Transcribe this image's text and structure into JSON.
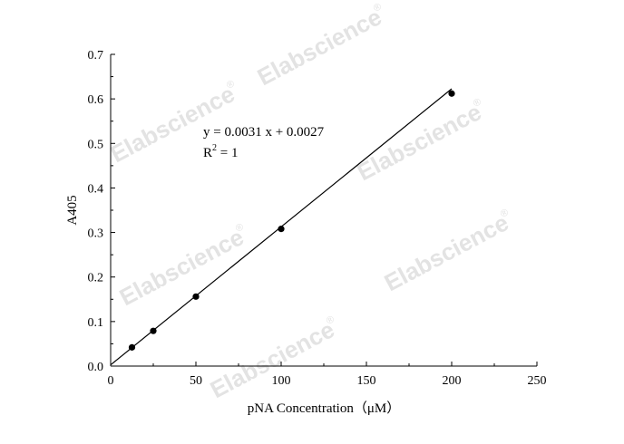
{
  "chart_data": {
    "type": "scatter",
    "xlabel": "pNA Concentration（μM）",
    "ylabel": "A405",
    "xlim": [
      0,
      250
    ],
    "ylim": [
      0,
      0.7
    ],
    "xticks": [
      "0",
      "50",
      "100",
      "150",
      "200",
      "250"
    ],
    "yticks": [
      "0.0",
      "0.1",
      "0.2",
      "0.3",
      "0.4",
      "0.5",
      "0.6",
      "0.7"
    ],
    "series": [
      {
        "x": [
          12.5,
          25,
          50,
          100,
          200
        ],
        "y": [
          0.042,
          0.079,
          0.156,
          0.308,
          0.612
        ]
      }
    ],
    "fit_line": {
      "slope": 0.0031,
      "intercept": 0.0027,
      "x_range": [
        0,
        200
      ]
    },
    "equation": "y = 0.0031 x + 0.0027",
    "r_squared_label": "R",
    "r_squared_sup": "2",
    "r_squared_value": " = 1",
    "grid": false,
    "watermark": "Elabscience",
    "watermark_mark": "®"
  }
}
